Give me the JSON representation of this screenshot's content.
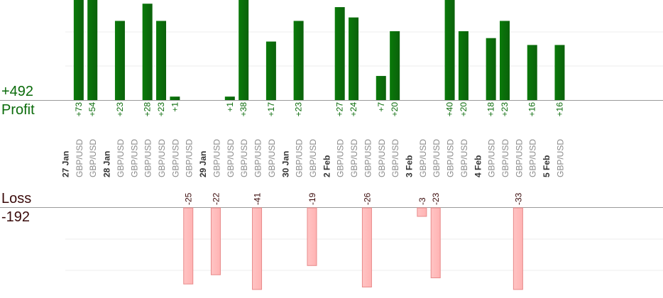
{
  "labels": {
    "profit_total": "+492",
    "profit_label": "Profit",
    "loss_label": "Loss",
    "loss_total": "-192"
  },
  "colors": {
    "profit_bar": "#0b610b",
    "profit_text": "#0a6b0a",
    "loss_bar": "#ffb3b3",
    "loss_bar_edge": "#e88a8a",
    "loss_text": "#3a0a0a",
    "tick_text": "#8a8a8a",
    "date_text": "#333333",
    "grid": "#ececec",
    "axis": "#9a9a9a"
  },
  "chart_data": {
    "type": "bar",
    "profit_ylim": [
      0,
      30
    ],
    "loss_ylim": [
      0,
      25
    ],
    "categories": [
      {
        "kind": "date",
        "text": "27 Jan"
      },
      {
        "kind": "trade",
        "text": "GBP/USD",
        "profit": "+73",
        "value": 73
      },
      {
        "kind": "trade",
        "text": "GBP/USD",
        "profit": "+54",
        "value": 54
      },
      {
        "kind": "date",
        "text": "28 Jan"
      },
      {
        "kind": "trade",
        "text": "GBP/USD",
        "profit": "+23",
        "value": 23
      },
      {
        "kind": "trade",
        "text": "GBP/USD"
      },
      {
        "kind": "trade",
        "text": "GBP/USD",
        "profit": "+28",
        "value": 28
      },
      {
        "kind": "trade",
        "text": "GBP/USD",
        "profit": "+23",
        "value": 23
      },
      {
        "kind": "trade",
        "text": "GBP/USD",
        "profit": "+1",
        "value": 1
      },
      {
        "kind": "trade",
        "text": "GBP/USD",
        "loss": "-25",
        "value": -25
      },
      {
        "kind": "date",
        "text": "29 Jan"
      },
      {
        "kind": "trade",
        "text": "GBP/USD",
        "loss": "-22",
        "value": -22
      },
      {
        "kind": "trade",
        "text": "GBP/USD",
        "profit": "+1",
        "value": 1
      },
      {
        "kind": "trade",
        "text": "GBP/USD",
        "profit": "+38",
        "value": 38
      },
      {
        "kind": "trade",
        "text": "GBP/USD",
        "loss": "-41",
        "value": -41
      },
      {
        "kind": "trade",
        "text": "GBP/USD",
        "profit": "+17",
        "value": 17
      },
      {
        "kind": "date",
        "text": "30 Jan"
      },
      {
        "kind": "trade",
        "text": "GBP/USD",
        "profit": "+23",
        "value": 23
      },
      {
        "kind": "trade",
        "text": "GBP/USD",
        "loss": "-19",
        "value": -19
      },
      {
        "kind": "date",
        "text": "2 Feb"
      },
      {
        "kind": "trade",
        "text": "GBP/USD",
        "profit": "+27",
        "value": 27
      },
      {
        "kind": "trade",
        "text": "GBP/USD",
        "profit": "+24",
        "value": 24
      },
      {
        "kind": "trade",
        "text": "GBP/USD",
        "loss": "-26",
        "value": -26
      },
      {
        "kind": "trade",
        "text": "GBP/USD",
        "profit": "+7",
        "value": 7
      },
      {
        "kind": "trade",
        "text": "GBP/USD",
        "profit": "+20",
        "value": 20
      },
      {
        "kind": "date",
        "text": "3 Feb"
      },
      {
        "kind": "trade",
        "text": "GBP/USD",
        "loss": "-3",
        "value": -3
      },
      {
        "kind": "trade",
        "text": "GBP/USD",
        "loss": "-23",
        "value": -23
      },
      {
        "kind": "trade",
        "text": "GBP/USD",
        "profit": "+40",
        "value": 40
      },
      {
        "kind": "trade",
        "text": "GBP/USD",
        "profit": "+20",
        "value": 20
      },
      {
        "kind": "date",
        "text": "4 Feb"
      },
      {
        "kind": "trade",
        "text": "GBP/USD",
        "profit": "+18",
        "value": 18
      },
      {
        "kind": "trade",
        "text": "GBP/USD",
        "profit": "+23",
        "value": 23
      },
      {
        "kind": "trade",
        "text": "GBP/USD",
        "loss": "-33",
        "value": -33
      },
      {
        "kind": "trade",
        "text": "GBP/USD",
        "profit": "+16",
        "value": 16
      },
      {
        "kind": "date",
        "text": "5 Feb"
      },
      {
        "kind": "trade",
        "text": "GBP/USD",
        "profit": "+16",
        "value": 16
      }
    ]
  }
}
